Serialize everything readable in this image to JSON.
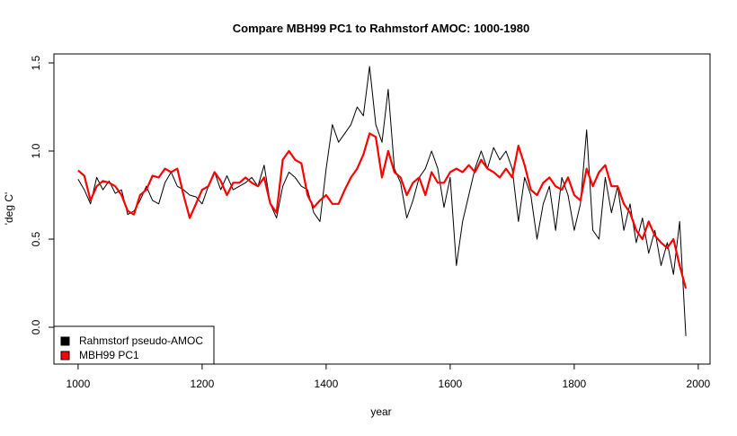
{
  "chart_data": {
    "type": "line",
    "title": "Compare MBH99 PC1 to Rahmstorf AMOC: 1000-1980",
    "x_label": "year",
    "y_label": "'deg C'",
    "x": [
      1000,
      1010,
      1020,
      1030,
      1040,
      1050,
      1060,
      1070,
      1080,
      1090,
      1100,
      1110,
      1120,
      1130,
      1140,
      1150,
      1160,
      1170,
      1180,
      1190,
      1200,
      1210,
      1220,
      1230,
      1240,
      1250,
      1260,
      1270,
      1280,
      1290,
      1300,
      1310,
      1320,
      1330,
      1340,
      1350,
      1360,
      1370,
      1380,
      1390,
      1400,
      1410,
      1420,
      1430,
      1440,
      1450,
      1460,
      1470,
      1480,
      1490,
      1500,
      1510,
      1520,
      1530,
      1540,
      1550,
      1560,
      1570,
      1580,
      1590,
      1600,
      1610,
      1620,
      1630,
      1640,
      1650,
      1660,
      1670,
      1680,
      1690,
      1700,
      1710,
      1720,
      1730,
      1740,
      1750,
      1760,
      1770,
      1780,
      1790,
      1800,
      1810,
      1820,
      1830,
      1840,
      1850,
      1860,
      1870,
      1880,
      1890,
      1900,
      1910,
      1920,
      1930,
      1940,
      1950,
      1960,
      1970,
      1980
    ],
    "series": [
      {
        "name": "Rahmstorf pseudo-AMOC",
        "color": "#000000",
        "width": 1,
        "values": [
          0.84,
          0.78,
          0.7,
          0.85,
          0.78,
          0.83,
          0.76,
          0.78,
          0.64,
          0.66,
          0.72,
          0.8,
          0.72,
          0.7,
          0.82,
          0.88,
          0.8,
          0.78,
          0.75,
          0.74,
          0.7,
          0.8,
          0.88,
          0.78,
          0.86,
          0.78,
          0.8,
          0.82,
          0.85,
          0.8,
          0.92,
          0.7,
          0.62,
          0.8,
          0.88,
          0.85,
          0.8,
          0.78,
          0.65,
          0.6,
          0.9,
          1.15,
          1.05,
          1.1,
          1.15,
          1.25,
          1.2,
          1.48,
          1.15,
          1.05,
          1.35,
          0.9,
          0.82,
          0.62,
          0.72,
          0.85,
          0.9,
          1.0,
          0.9,
          0.68,
          0.85,
          0.35,
          0.6,
          0.75,
          0.9,
          1.0,
          0.9,
          1.02,
          0.95,
          1.0,
          0.9,
          0.6,
          0.85,
          0.75,
          0.5,
          0.7,
          0.8,
          0.55,
          0.85,
          0.75,
          0.55,
          0.7,
          1.12,
          0.55,
          0.5,
          0.85,
          0.65,
          0.8,
          0.55,
          0.7,
          0.48,
          0.62,
          0.42,
          0.55,
          0.35,
          0.48,
          0.3,
          0.6,
          -0.05
        ]
      },
      {
        "name": "MBH99 PC1",
        "color": "#ff0000",
        "width": 2.2,
        "values": [
          0.89,
          0.86,
          0.72,
          0.8,
          0.83,
          0.82,
          0.8,
          0.75,
          0.66,
          0.64,
          0.75,
          0.78,
          0.86,
          0.85,
          0.9,
          0.88,
          0.9,
          0.75,
          0.62,
          0.7,
          0.78,
          0.8,
          0.88,
          0.83,
          0.75,
          0.82,
          0.82,
          0.85,
          0.82,
          0.8,
          0.85,
          0.7,
          0.65,
          0.95,
          1.0,
          0.95,
          0.93,
          0.75,
          0.68,
          0.72,
          0.75,
          0.7,
          0.7,
          0.78,
          0.85,
          0.9,
          0.98,
          1.1,
          1.08,
          0.85,
          1.0,
          0.88,
          0.85,
          0.75,
          0.82,
          0.85,
          0.75,
          0.88,
          0.82,
          0.82,
          0.88,
          0.9,
          0.88,
          0.92,
          0.88,
          0.95,
          0.9,
          0.88,
          0.85,
          0.9,
          0.85,
          1.03,
          0.92,
          0.78,
          0.75,
          0.82,
          0.85,
          0.8,
          0.78,
          0.85,
          0.75,
          0.72,
          0.9,
          0.8,
          0.88,
          0.92,
          0.8,
          0.8,
          0.7,
          0.65,
          0.55,
          0.5,
          0.6,
          0.52,
          0.48,
          0.45,
          0.5,
          0.35,
          0.22
        ]
      }
    ],
    "xlim": [
      961,
      2019
    ],
    "xticks": [
      1000,
      1200,
      1400,
      1600,
      1800,
      2000
    ],
    "ylim": [
      -0.209,
      1.551
    ],
    "yticks": [
      {
        "value": 0,
        "label": "0.0"
      },
      0.5,
      {
        "value": 1,
        "label": "1.0"
      },
      1.5
    ],
    "legend": "bottom-left"
  }
}
